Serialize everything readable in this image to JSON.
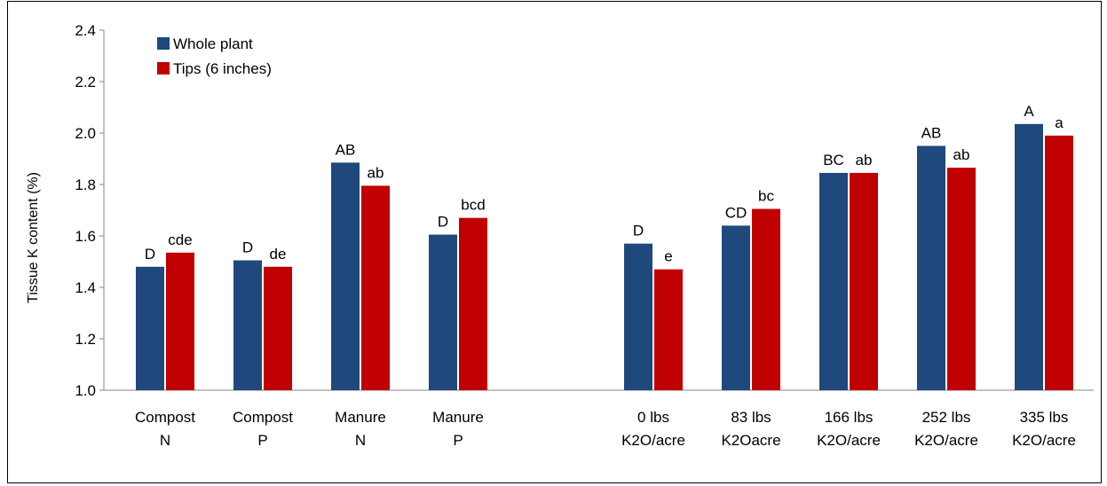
{
  "chart_data": {
    "type": "bar",
    "title": "",
    "xlabel": "",
    "ylabel": "Tissue K content (%)",
    "ylim": [
      1.0,
      2.4
    ],
    "yticks": [
      "1.0",
      "1.2",
      "1.4",
      "1.6",
      "1.8",
      "2.0",
      "2.2",
      "2.4"
    ],
    "grid": false,
    "legend_position": "top-left",
    "categories": [
      [
        "Compost",
        "N"
      ],
      [
        "Compost",
        "P"
      ],
      [
        "Manure",
        "N"
      ],
      [
        "Manure",
        "P"
      ],
      [
        "0 lbs",
        "K2O/acre"
      ],
      [
        "83 lbs",
        "K2Oacre"
      ],
      [
        "166 lbs",
        "K2O/acre"
      ],
      [
        "252 lbs",
        "K2O/acre"
      ],
      [
        "335 lbs",
        "K2O/acre"
      ]
    ],
    "series": [
      {
        "name": "Whole plant",
        "color": "#1f497d",
        "values": [
          1.48,
          1.505,
          1.885,
          1.605,
          1.57,
          1.64,
          1.845,
          1.95,
          2.035
        ],
        "labels": [
          "D",
          "D",
          "AB",
          "D",
          "D",
          "CD",
          "BC",
          "AB",
          "A"
        ]
      },
      {
        "name": "Tips (6 inches)",
        "color": "#c00000",
        "values": [
          1.535,
          1.48,
          1.795,
          1.67,
          1.47,
          1.705,
          1.845,
          1.865,
          1.99
        ],
        "labels": [
          "cde",
          "de",
          "ab",
          "bcd",
          "e",
          "bc",
          "ab",
          "ab",
          "a"
        ]
      }
    ]
  }
}
